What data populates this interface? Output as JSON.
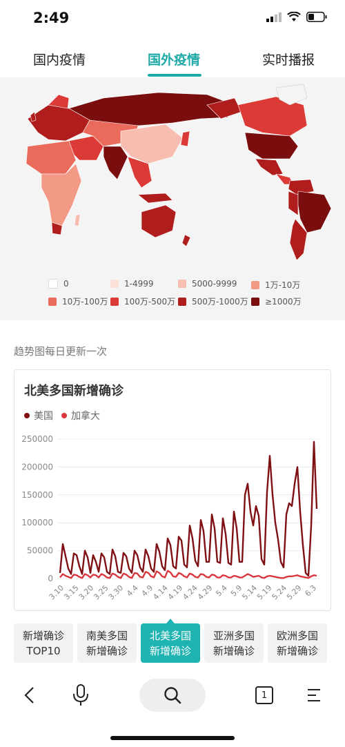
{
  "status": {
    "time": "2:49"
  },
  "tabs": [
    "国内疫情",
    "国外疫情",
    "实时播报"
  ],
  "legend": [
    {
      "label": "0",
      "color": "#ffffff"
    },
    {
      "label": "1-4999",
      "color": "#fbe0d8"
    },
    {
      "label": "5000-9999",
      "color": "#f6bdb0"
    },
    {
      "label": "1万-10万",
      "color": "#f29a86"
    },
    {
      "label": "10万-100万",
      "color": "#ea6a5c"
    },
    {
      "label": "100万-500万",
      "color": "#dc3a36"
    },
    {
      "label": "500万-1000万",
      "color": "#b01d1d"
    },
    {
      "label": "≥1000万",
      "color": "#7a0d0d"
    }
  ],
  "trend_note": "趋势图每日更新一次",
  "chart_data": {
    "type": "line",
    "title": "北美多国新增确诊",
    "ylim": [
      0,
      250000
    ],
    "yticks": [
      "250000",
      "200000",
      "150000",
      "100000",
      "50000",
      "0"
    ],
    "xticks": [
      "3.10",
      "3.15",
      "3.20",
      "3.25",
      "3.30",
      "4.4",
      "4.9",
      "4.14",
      "4.19",
      "4.24",
      "4.29",
      "5.4",
      "5.9",
      "5.14",
      "5.19",
      "5.24",
      "5.29",
      "6.3"
    ],
    "series": [
      {
        "name": "美国",
        "color": "#7f0f12",
        "values": [
          10000,
          62000,
          40000,
          18000,
          8000,
          45000,
          42000,
          22000,
          8000,
          50000,
          38000,
          10000,
          42000,
          30000,
          12000,
          45000,
          38000,
          12000,
          8000,
          52000,
          40000,
          12000,
          10000,
          46000,
          40000,
          18000,
          10000,
          50000,
          42000,
          20000,
          12000,
          52000,
          40000,
          18000,
          12000,
          62000,
          48000,
          22000,
          15000,
          72000,
          60000,
          22000,
          18000,
          75000,
          68000,
          25000,
          20000,
          95000,
          72000,
          32000,
          22000,
          105000,
          85000,
          30000,
          30000,
          115000,
          90000,
          30000,
          28000,
          108000,
          80000,
          28000,
          25000,
          120000,
          90000,
          30000,
          30000,
          150000,
          170000,
          120000,
          95000,
          130000,
          112000,
          35000,
          25000,
          155000,
          220000,
          150000,
          100000,
          70000,
          30000,
          20000,
          115000,
          135000,
          130000,
          170000,
          200000,
          120000,
          60000,
          10000,
          5000,
          95000,
          245000,
          125000
        ]
      },
      {
        "name": "加拿大",
        "color": "#d9363e",
        "values": [
          2000,
          8000,
          5000,
          3000,
          1000,
          7000,
          6000,
          3000,
          1000,
          8000,
          6000,
          2000,
          7000,
          6000,
          2000,
          8000,
          6000,
          2000,
          1000,
          9000,
          7000,
          3000,
          1000,
          9000,
          7000,
          3000,
          1000,
          10000,
          9000,
          3000,
          2000,
          12000,
          10000,
          4000,
          2000,
          13000,
          10000,
          4000,
          2000,
          14000,
          11000,
          4000,
          3000,
          10000,
          8000,
          4000,
          2000,
          9000,
          7000,
          3000,
          2000,
          8000,
          7000,
          3000,
          2000,
          7000,
          6000,
          2000,
          2000,
          6000,
          5000,
          2000,
          2000,
          5000,
          4000,
          2000,
          2000,
          5000,
          8000,
          6000,
          3000,
          4000,
          5000,
          2000,
          1000,
          4000,
          5000,
          4000,
          3000,
          2000,
          1000,
          1000,
          3000,
          4000,
          4000,
          5000,
          6000,
          4000,
          3000,
          2000,
          1000,
          4000,
          6000,
          5000
        ]
      }
    ]
  },
  "categories": [
    {
      "line1": "新增确诊",
      "line2": "TOP10"
    },
    {
      "line1": "南美多国",
      "line2": "新增确诊"
    },
    {
      "line1": "北美多国",
      "line2": "新增确诊"
    },
    {
      "line1": "亚洲多国",
      "line2": "新增确诊"
    },
    {
      "line1": "欧洲多国",
      "line2": "新增确诊"
    }
  ],
  "bottom_nav": {
    "page_count": "1"
  }
}
